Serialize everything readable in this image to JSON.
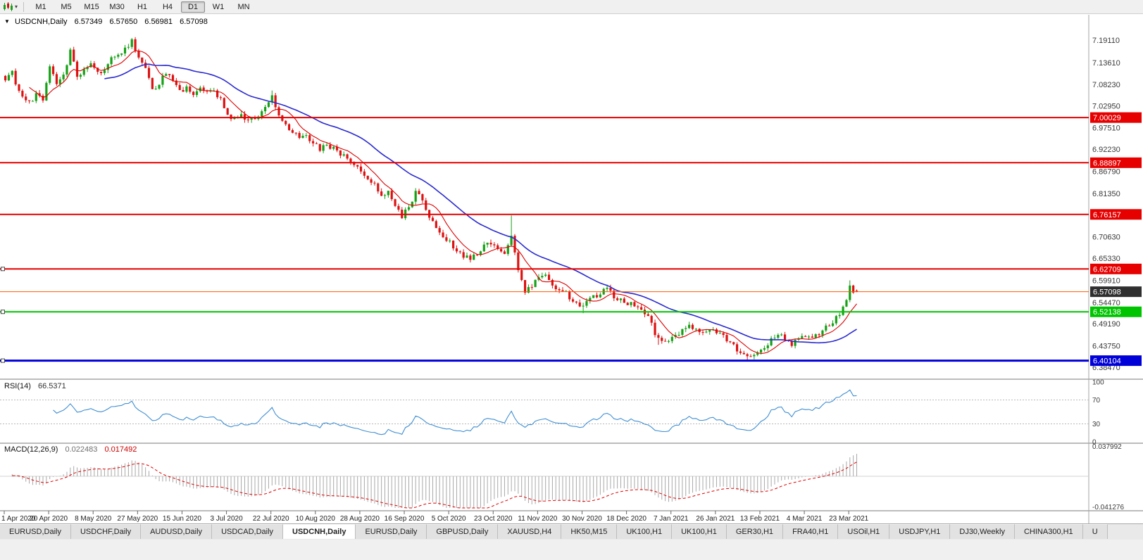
{
  "colors": {
    "bull": "#16a016",
    "bear": "#dd1212",
    "ma_fast": "#dd0000",
    "ma_slow": "#2a2ad0",
    "rsi": "#3f8fd2",
    "macd_hist": "#a8a8a8",
    "macd_signal": "#e00000",
    "axis_text": "#3a3a3a",
    "level_red": "#e60000",
    "level_green": "#00c400",
    "level_blue": "#0000d8",
    "price_line": "#ff5a00",
    "price_box": "#2f2f2f"
  },
  "toolbar": {
    "timeframes": [
      "M1",
      "M5",
      "M15",
      "M30",
      "H1",
      "H4",
      "D1",
      "W1",
      "MN"
    ],
    "active_timeframe": "D1"
  },
  "chart_header": {
    "collapse_icon": "▼",
    "symbol": "USDCNH,Daily",
    "open": "6.57349",
    "high": "6.57650",
    "low": "6.56981",
    "close": "6.57098"
  },
  "price_axis_labels": [
    "7.19110",
    "7.13610",
    "7.08230",
    "7.02950",
    "6.97510",
    "6.92230",
    "6.86790",
    "6.81350",
    "6.70630",
    "6.65330",
    "6.59910",
    "6.54470",
    "6.49190",
    "6.43750",
    "6.38470"
  ],
  "hlines": [
    {
      "value": 7.00029,
      "label": "7.00029",
      "color": "#e60000",
      "width": 2,
      "kind": "resistance",
      "handle": false
    },
    {
      "value": 6.88897,
      "label": "6.88897",
      "color": "#e60000",
      "width": 2,
      "kind": "resistance",
      "handle": false
    },
    {
      "value": 6.76157,
      "label": "6.76157",
      "color": "#e60000",
      "width": 2,
      "kind": "resistance",
      "handle": false
    },
    {
      "value": 6.62709,
      "label": "6.62709",
      "color": "#e60000",
      "width": 2,
      "kind": "resistance",
      "handle": true
    },
    {
      "value": 6.57098,
      "label": "6.57098",
      "color": "#ff5a00",
      "width": 1,
      "kind": "current-price",
      "box": "#2f2f2f",
      "handle": false
    },
    {
      "value": 6.52138,
      "label": "6.52138",
      "color": "#00c400",
      "width": 2,
      "kind": "support",
      "handle": true
    },
    {
      "value": 6.40104,
      "label": "6.40104",
      "color": "#0000d8",
      "width": 3,
      "kind": "support",
      "handle": true
    }
  ],
  "dates": [
    "1 Apr 2020",
    "20 Apr 2020",
    "8 May 2020",
    "27 May 2020",
    "15 Jun 2020",
    "3 Jul 2020",
    "22 Jul 2020",
    "10 Aug 2020",
    "28 Aug 2020",
    "16 Sep 2020",
    "5 Oct 2020",
    "23 Oct 2020",
    "11 Nov 2020",
    "30 Nov 2020",
    "18 Dec 2020",
    "7 Jan 2021",
    "26 Jan 2021",
    "13 Feb 2021",
    "4 Mar 2021",
    "23 Mar 2021"
  ],
  "rsi": {
    "name": "RSI(14)",
    "value": "66.5371",
    "levels": [
      {
        "label": "100",
        "value": 100,
        "line": false
      },
      {
        "label": "70",
        "value": 70,
        "line": true
      },
      {
        "label": "30",
        "value": 30,
        "line": true
      },
      {
        "label": "0",
        "value": 0,
        "line": false
      }
    ]
  },
  "macd": {
    "name": "MACD(12,26,9)",
    "main_value": "0.022483",
    "signal_value": "0.017492",
    "scale_top": "0.037992",
    "scale_bottom": "-0.041276"
  },
  "tabs": [
    {
      "label": "EURUSD,Daily",
      "active": false
    },
    {
      "label": "USDCHF,Daily",
      "active": false
    },
    {
      "label": "AUDUSD,Daily",
      "active": false
    },
    {
      "label": "USDCAD,Daily",
      "active": false
    },
    {
      "label": "USDCNH,Daily",
      "active": true
    },
    {
      "label": "EURUSD,Daily",
      "active": false
    },
    {
      "label": "GBPUSD,Daily",
      "active": false
    },
    {
      "label": "XAUUSD,H4",
      "active": false
    },
    {
      "label": "HK50,M15",
      "active": false
    },
    {
      "label": "UK100,H1",
      "active": false
    },
    {
      "label": "UK100,H1",
      "active": false
    },
    {
      "label": "GER30,H1",
      "active": false
    },
    {
      "label": "FRA40,H1",
      "active": false
    },
    {
      "label": "USOil,H1",
      "active": false
    },
    {
      "label": "USDJPY,H1",
      "active": false
    },
    {
      "label": "DJ30,Weekly",
      "active": false
    },
    {
      "label": "CHINA300,H1",
      "active": false
    },
    {
      "label": "U",
      "active": false
    }
  ],
  "chart_data": {
    "type": "candlestick",
    "symbol": "USDCNH",
    "timeframe": "Daily",
    "bars": 250,
    "last_bar": {
      "open": 6.57349,
      "high": 6.5765,
      "low": 6.56981,
      "close": 6.57098
    },
    "y_axis": {
      "visible_top": 7.2537,
      "visible_bottom": 6.3553
    },
    "key_levels": [
      7.00029,
      6.88897,
      6.76157,
      6.62709,
      6.57098,
      6.52138,
      6.40104
    ],
    "indicators": {
      "ma_fast": 8,
      "ma_slow": 30,
      "rsi_period": 14,
      "macd": [
        12,
        26,
        9
      ],
      "rsi_last": 66.5371,
      "macd_last": 0.022483,
      "macd_signal_last": 0.017492
    },
    "price_path_anchors": [
      [
        0,
        7.095
      ],
      [
        2,
        7.115
      ],
      [
        4,
        7.062
      ],
      [
        7,
        7.036
      ],
      [
        9,
        7.058
      ],
      [
        11,
        7.048
      ],
      [
        13,
        7.122
      ],
      [
        15,
        7.088
      ],
      [
        17,
        7.108
      ],
      [
        19,
        7.162
      ],
      [
        21,
        7.102
      ],
      [
        23,
        7.116
      ],
      [
        25,
        7.134
      ],
      [
        27,
        7.112
      ],
      [
        29,
        7.12
      ],
      [
        31,
        7.144
      ],
      [
        33,
        7.156
      ],
      [
        35,
        7.168
      ],
      [
        37,
        7.188
      ],
      [
        39,
        7.152
      ],
      [
        41,
        7.118
      ],
      [
        43,
        7.066
      ],
      [
        45,
        7.082
      ],
      [
        47,
        7.112
      ],
      [
        49,
        7.086
      ],
      [
        51,
        7.068
      ],
      [
        53,
        7.072
      ],
      [
        55,
        7.062
      ],
      [
        57,
        7.076
      ],
      [
        59,
        7.07
      ],
      [
        61,
        7.062
      ],
      [
        63,
        7.044
      ],
      [
        65,
        7.006
      ],
      [
        67,
        6.996
      ],
      [
        69,
        7.006
      ],
      [
        71,
        6.992
      ],
      [
        73,
        7.002
      ],
      [
        75,
        7.012
      ],
      [
        78,
        7.058
      ],
      [
        80,
        7.006
      ],
      [
        82,
        6.978
      ],
      [
        84,
        6.966
      ],
      [
        86,
        6.952
      ],
      [
        88,
        6.956
      ],
      [
        90,
        6.936
      ],
      [
        92,
        6.922
      ],
      [
        94,
        6.93
      ],
      [
        96,
        6.924
      ],
      [
        98,
        6.912
      ],
      [
        100,
        6.902
      ],
      [
        102,
        6.886
      ],
      [
        104,
        6.862
      ],
      [
        106,
        6.847
      ],
      [
        108,
        6.838
      ],
      [
        110,
        6.802
      ],
      [
        112,
        6.816
      ],
      [
        114,
        6.782
      ],
      [
        116,
        6.758
      ],
      [
        118,
        6.782
      ],
      [
        120,
        6.814
      ],
      [
        122,
        6.798
      ],
      [
        124,
        6.756
      ],
      [
        126,
        6.722
      ],
      [
        128,
        6.706
      ],
      [
        130,
        6.696
      ],
      [
        132,
        6.672
      ],
      [
        134,
        6.652
      ],
      [
        136,
        6.656
      ],
      [
        138,
        6.668
      ],
      [
        140,
        6.682
      ],
      [
        142,
        6.69
      ],
      [
        144,
        6.676
      ],
      [
        146,
        6.666
      ],
      [
        148,
        6.712
      ],
      [
        150,
        6.624
      ],
      [
        152,
        6.566
      ],
      [
        154,
        6.586
      ],
      [
        156,
        6.602
      ],
      [
        158,
        6.616
      ],
      [
        160,
        6.588
      ],
      [
        162,
        6.578
      ],
      [
        164,
        6.566
      ],
      [
        166,
        6.546
      ],
      [
        168,
        6.533
      ],
      [
        170,
        6.546
      ],
      [
        172,
        6.558
      ],
      [
        174,
        6.568
      ],
      [
        176,
        6.576
      ],
      [
        178,
        6.558
      ],
      [
        180,
        6.548
      ],
      [
        182,
        6.542
      ],
      [
        184,
        6.536
      ],
      [
        186,
        6.528
      ],
      [
        188,
        6.508
      ],
      [
        190,
        6.468
      ],
      [
        192,
        6.452
      ],
      [
        194,
        6.448
      ],
      [
        196,
        6.462
      ],
      [
        198,
        6.478
      ],
      [
        200,
        6.488
      ],
      [
        202,
        6.482
      ],
      [
        204,
        6.472
      ],
      [
        206,
        6.478
      ],
      [
        208,
        6.468
      ],
      [
        210,
        6.458
      ],
      [
        212,
        6.445
      ],
      [
        214,
        6.428
      ],
      [
        216,
        6.415
      ],
      [
        218,
        6.411
      ],
      [
        220,
        6.418
      ],
      [
        222,
        6.432
      ],
      [
        224,
        6.455
      ],
      [
        226,
        6.469
      ],
      [
        228,
        6.455
      ],
      [
        230,
        6.441
      ],
      [
        232,
        6.452
      ],
      [
        234,
        6.465
      ],
      [
        236,
        6.458
      ],
      [
        238,
        6.47
      ],
      [
        240,
        6.482
      ],
      [
        242,
        6.496
      ],
      [
        244,
        6.52
      ],
      [
        245,
        6.538
      ],
      [
        246,
        6.556
      ],
      [
        247,
        6.584
      ],
      [
        248,
        6.574
      ],
      [
        249,
        6.57098
      ]
    ],
    "spikes": [
      {
        "bar": 37,
        "high": 7.196
      },
      {
        "bar": 78,
        "high": 7.067
      },
      {
        "bar": 148,
        "high": 6.759
      },
      {
        "bar": 169,
        "low": 6.518
      },
      {
        "bar": 191,
        "low": 6.44
      },
      {
        "bar": 217,
        "low": 6.403
      },
      {
        "bar": 247,
        "high": 6.599
      }
    ]
  }
}
